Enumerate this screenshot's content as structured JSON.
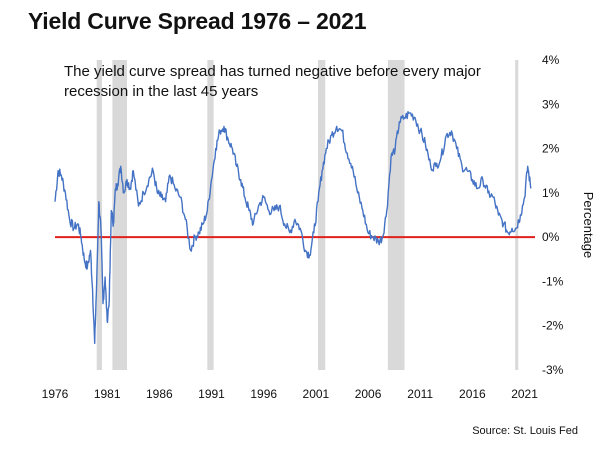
{
  "title": "Yield Curve Spread 1976 – 2021",
  "subtitle": "The yield curve spread has turned negative before every major recession in the last 45 years",
  "source": "St. Louis Fed",
  "source_text": "Source: St. Louis Fed",
  "colors": {
    "line": "#4472c4",
    "zero_line": "#e0201b",
    "recession": "#d9d9d9"
  },
  "chart_data": {
    "type": "line",
    "title": "Yield Curve Spread 1976 – 2021",
    "xlabel": "",
    "ylabel": "Percentage",
    "xlim": [
      1976,
      2022
    ],
    "ylim": [
      -3,
      4
    ],
    "grid": false,
    "x_ticks": [
      1976,
      1981,
      1986,
      1991,
      1996,
      2001,
      2006,
      2011,
      2016,
      2021
    ],
    "x_tick_labels": [
      "1976",
      "1981",
      "1986",
      "1991",
      "1996",
      "2001",
      "2006",
      "2011",
      "2016",
      "2021"
    ],
    "y_ticks": [
      4,
      3,
      2,
      1,
      0,
      -1,
      -2,
      -3
    ],
    "y_tick_labels": [
      "4%",
      "3%",
      "2%",
      "1%",
      "0%",
      "-1%",
      "-2%",
      "-3%"
    ],
    "reference_line": {
      "y": 0
    },
    "recessions": [
      [
        1980.0,
        1980.5
      ],
      [
        1981.5,
        1982.9
      ],
      [
        1990.6,
        1991.2
      ],
      [
        2001.2,
        2001.9
      ],
      [
        2007.9,
        2009.5
      ],
      [
        2020.1,
        2020.4
      ]
    ],
    "series": [
      {
        "x": [
          1976.0,
          1976.3,
          1976.6,
          1977.0,
          1977.4,
          1977.8,
          1978.2,
          1978.5,
          1978.8,
          1979.1,
          1979.4,
          1979.6,
          1979.8,
          1980.0,
          1980.2,
          1980.4,
          1980.6,
          1980.8,
          1981.0,
          1981.2,
          1981.4,
          1981.6,
          1981.8,
          1982.0,
          1982.3,
          1982.6,
          1982.9,
          1983.2,
          1983.5,
          1984.0,
          1984.5,
          1985.0,
          1985.4,
          1985.8,
          1986.2,
          1986.6,
          1987.0,
          1987.5,
          1988.0,
          1988.5,
          1989.0,
          1989.4,
          1989.8,
          1990.2,
          1990.6,
          1991.0,
          1991.4,
          1991.8,
          1992.2,
          1992.6,
          1993.0,
          1993.4,
          1993.8,
          1994.2,
          1994.6,
          1995.0,
          1995.5,
          1996.0,
          1996.5,
          1997.0,
          1997.5,
          1998.0,
          1998.5,
          1999.0,
          1999.5,
          2000.0,
          2000.4,
          2000.8,
          2001.2,
          2001.6,
          2002.0,
          2002.5,
          2003.0,
          2003.5,
          2004.0,
          2004.5,
          2005.0,
          2005.5,
          2006.0,
          2006.5,
          2007.0,
          2007.4,
          2007.8,
          2008.2,
          2008.6,
          2009.0,
          2009.5,
          2010.0,
          2010.5,
          2011.0,
          2011.5,
          2012.0,
          2012.5,
          2013.0,
          2013.5,
          2014.0,
          2014.5,
          2015.0,
          2015.5,
          2016.0,
          2016.5,
          2017.0,
          2017.5,
          2018.0,
          2018.5,
          2019.0,
          2019.4,
          2019.8,
          2020.2,
          2020.6,
          2021.0,
          2021.3,
          2021.6
        ],
        "y": [
          0.8,
          1.5,
          1.4,
          1.0,
          0.4,
          0.2,
          0.3,
          0.0,
          -0.5,
          -0.7,
          -0.3,
          -1.2,
          -2.4,
          -1.0,
          0.8,
          0.2,
          -1.5,
          -0.9,
          -1.9,
          -1.4,
          0.6,
          0.3,
          1.1,
          1.2,
          1.6,
          1.0,
          1.3,
          1.1,
          1.5,
          0.7,
          1.0,
          1.3,
          1.5,
          1.0,
          0.9,
          0.8,
          1.4,
          1.1,
          0.9,
          0.4,
          -0.3,
          0.0,
          0.1,
          0.3,
          0.6,
          1.3,
          2.0,
          2.4,
          2.5,
          2.2,
          2.0,
          1.6,
          1.3,
          0.9,
          0.6,
          0.3,
          0.7,
          0.9,
          0.6,
          0.6,
          0.7,
          0.3,
          0.1,
          0.4,
          0.2,
          -0.3,
          -0.4,
          0.1,
          0.8,
          1.5,
          2.0,
          2.3,
          2.5,
          2.4,
          1.9,
          1.6,
          1.0,
          0.6,
          0.1,
          0.0,
          -0.1,
          0.0,
          0.6,
          1.8,
          2.0,
          2.6,
          2.7,
          2.8,
          2.7,
          2.4,
          2.1,
          1.6,
          1.6,
          1.8,
          2.3,
          2.4,
          2.0,
          1.6,
          1.5,
          1.3,
          1.1,
          1.3,
          1.0,
          0.9,
          0.5,
          0.3,
          0.1,
          0.2,
          0.2,
          0.5,
          0.9,
          1.6,
          1.1
        ]
      }
    ]
  }
}
